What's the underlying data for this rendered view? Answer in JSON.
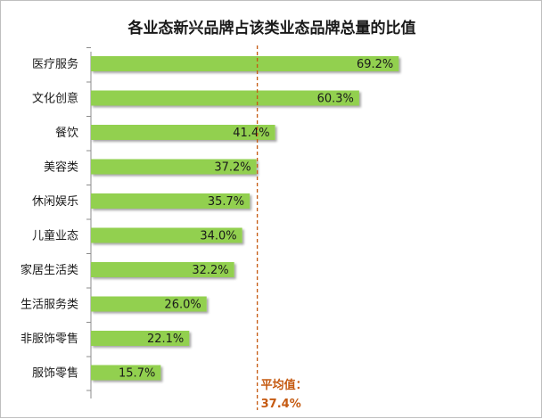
{
  "chart_data": {
    "type": "bar",
    "orientation": "horizontal",
    "title": "各业态新兴品牌占该类业态品牌总量的比值",
    "categories": [
      "医疗服务",
      "文化创意",
      "餐饮",
      "美容类",
      "休闲娱乐",
      "儿童业态",
      "家居生活类",
      "生活服务类",
      "非服饰零售",
      "服饰零售"
    ],
    "values": [
      69.2,
      60.3,
      41.4,
      37.2,
      35.7,
      34.0,
      32.2,
      26.0,
      22.1,
      15.7
    ],
    "value_labels": [
      "69.2%",
      "60.3%",
      "41.4%",
      "37.2%",
      "35.7%",
      "34.0%",
      "32.2%",
      "26.0%",
      "22.1%",
      "15.7%"
    ],
    "xlim": [
      0,
      100
    ],
    "average": {
      "value": 37.4,
      "label_line1": "平均值：",
      "label_line2": "37.4%"
    },
    "bar_color": "#92d050",
    "average_line_color": "#c55a11",
    "grid": false,
    "legend": "none"
  }
}
